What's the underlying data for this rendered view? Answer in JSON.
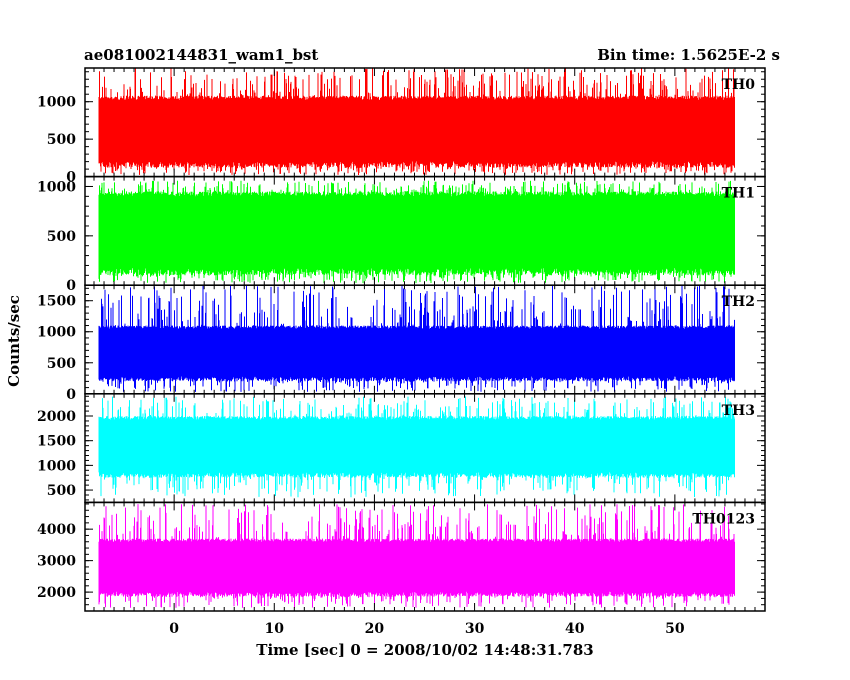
{
  "chart_data": {
    "type": "line",
    "title_left": "ae081002144831_wam1_bst",
    "title_right": "Bin time: 1.5625E-2 s",
    "xlabel": "Time [sec] 0 = 2008/10/02 14:48:31.783",
    "ylabel": "Counts/sec",
    "xlim": [
      -8.9,
      59.0
    ],
    "x_range": [
      -7.5,
      56.0
    ],
    "x_ticks": [
      0,
      10,
      20,
      30,
      40,
      50
    ],
    "x_tick_labels": [
      "0",
      "10",
      "20",
      "30",
      "40",
      "50"
    ],
    "grid": false,
    "panels": [
      {
        "name": "TH0",
        "color": "#ff0000",
        "ylim": [
          0,
          1450
        ],
        "y_ticks": [
          0,
          500,
          1000
        ],
        "y_tick_labels": [
          "0",
          "500",
          "1000"
        ],
        "base_min": 120,
        "base_max": 1080,
        "spike_min": 20,
        "spike_max": 1450
      },
      {
        "name": "TH1",
        "color": "#00ff00",
        "ylim": [
          0,
          1100
        ],
        "y_ticks": [
          0,
          500,
          1000
        ],
        "y_tick_labels": [
          "0",
          "500",
          "1000"
        ],
        "base_min": 100,
        "base_max": 950,
        "spike_min": 20,
        "spike_max": 1060
      },
      {
        "name": "TH2",
        "color": "#0000ff",
        "ylim": [
          0,
          1750
        ],
        "y_ticks": [
          0,
          500,
          1000,
          1500
        ],
        "y_tick_labels": [
          "0",
          "500",
          "1000",
          "1500"
        ],
        "base_min": 200,
        "base_max": 1100,
        "spike_min": 30,
        "spike_max": 1750
      },
      {
        "name": "TH3",
        "color": "#00ffff",
        "ylim": [
          250,
          2450
        ],
        "y_ticks": [
          500,
          1000,
          1500,
          2000
        ],
        "y_tick_labels": [
          "500",
          "1000",
          "1500",
          "2000"
        ],
        "base_min": 750,
        "base_max": 2000,
        "spike_min": 350,
        "spike_max": 2400
      },
      {
        "name": "TH0123",
        "color": "#ff00ff",
        "ylim": [
          1400,
          4850
        ],
        "y_ticks": [
          2000,
          3000,
          4000
        ],
        "y_tick_labels": [
          "2000",
          "3000",
          "4000"
        ],
        "base_min": 1850,
        "base_max": 3700,
        "spike_min": 1500,
        "spike_max": 4800
      }
    ]
  }
}
